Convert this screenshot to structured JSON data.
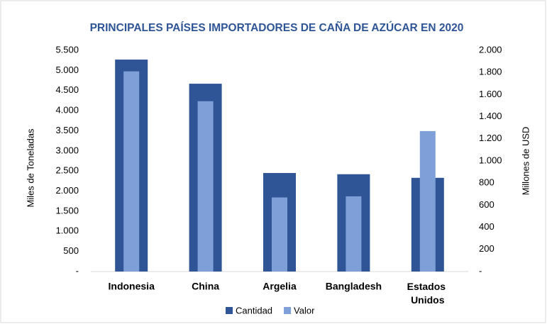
{
  "chart_data": {
    "type": "bar",
    "title": "PRINCIPALES PAÍSES IMPORTADORES DE CAÑA DE AZÚCAR EN 2020",
    "y_label": "Miles de Toneladas",
    "y2_label": "Millones de USD",
    "categories": [
      "Indonesia",
      "China",
      "Argelia",
      "Bangladesh",
      "Estados Unidos"
    ],
    "series": [
      {
        "name": "Cantidad",
        "color": "#2f5597",
        "values": [
          5270,
          4670,
          2450,
          2420,
          2330
        ]
      },
      {
        "name": "Valor",
        "color": "#7f9fd8",
        "axis": "y2",
        "values": [
          1810,
          1540,
          670,
          680,
          1270
        ]
      }
    ],
    "ylim": [
      0,
      5500
    ],
    "yticks": [
      {
        "value": 0,
        "label": "-"
      },
      500,
      {
        "value": 1000,
        "label": "1.000"
      },
      {
        "value": 1500,
        "label": "1.500"
      },
      {
        "value": 2000,
        "label": "2.000"
      },
      {
        "value": 2500,
        "label": "2.500"
      },
      {
        "value": 3000,
        "label": "3.000"
      },
      {
        "value": 3500,
        "label": "3.500"
      },
      {
        "value": 4000,
        "label": "4.000"
      },
      {
        "value": 4500,
        "label": "4.500"
      },
      {
        "value": 5000,
        "label": "5.000"
      },
      {
        "value": 5500,
        "label": "5.500"
      }
    ],
    "y2lim": [
      0,
      2000
    ],
    "y2ticks": [
      {
        "value": 0,
        "label": "-"
      },
      200,
      400,
      600,
      800,
      {
        "value": 1000,
        "label": "1.000"
      },
      {
        "value": 1200,
        "label": "1.200"
      },
      {
        "value": 1400,
        "label": "1.400"
      },
      {
        "value": 1600,
        "label": "1.600"
      },
      {
        "value": 1800,
        "label": "1.800"
      },
      {
        "value": 2000,
        "label": "2.000"
      }
    ],
    "grid": false,
    "legend": "bottom"
  }
}
